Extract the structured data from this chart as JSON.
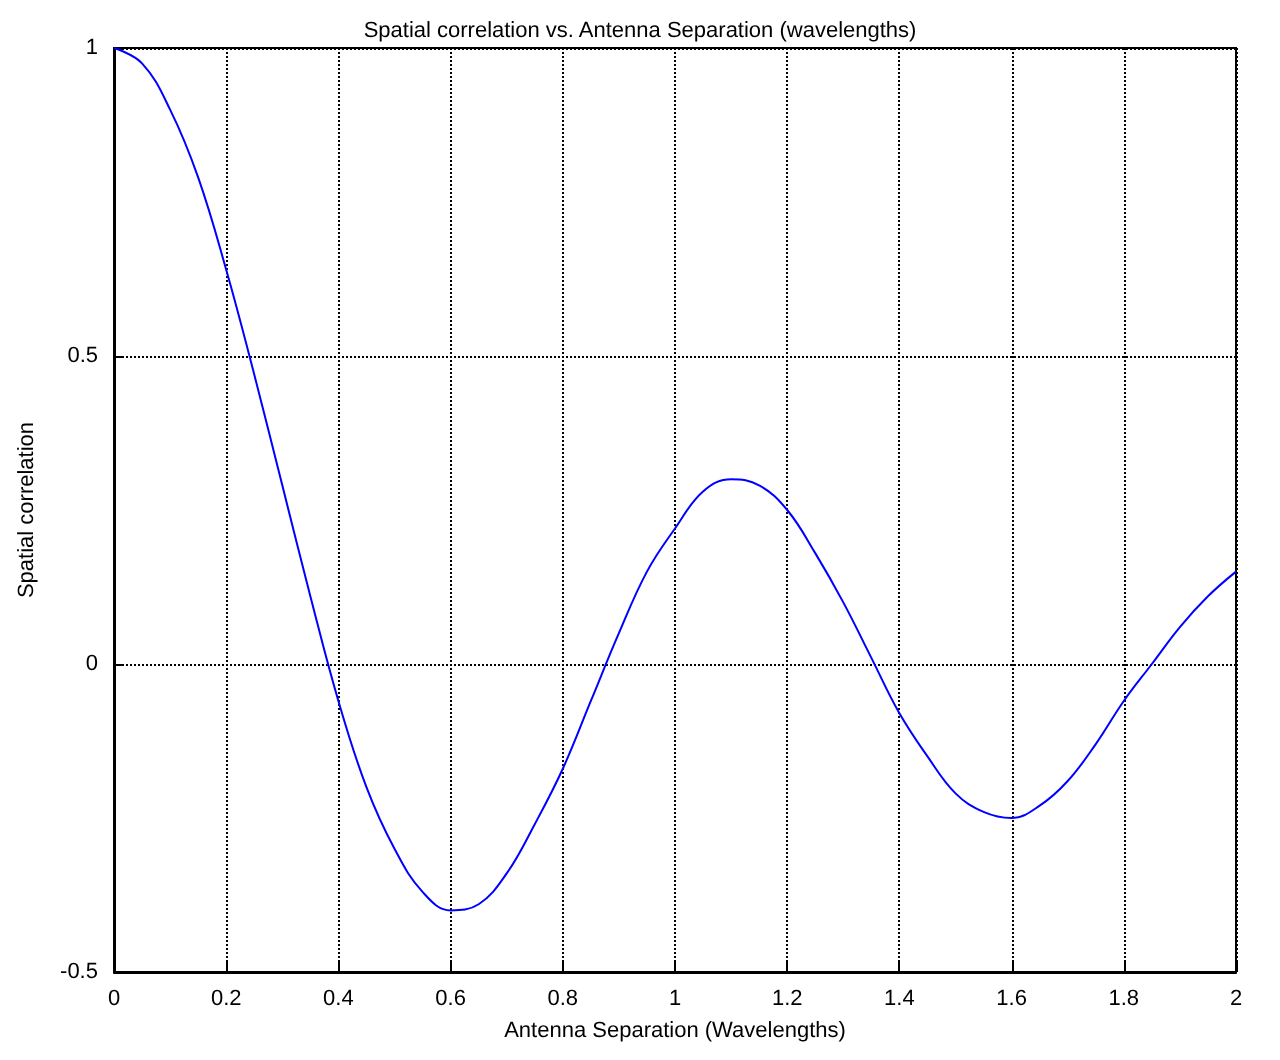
{
  "chart_data": {
    "type": "line",
    "title": "Spatial correlation vs. Antenna Separation (wavelengths)",
    "xlabel": "Antenna Separation (Wavelengths)",
    "ylabel": "Spatial correlation",
    "x": [
      0,
      0.05,
      0.1,
      0.15,
      0.2,
      0.25,
      0.3,
      0.35,
      0.4,
      0.45,
      0.5,
      0.55,
      0.6,
      0.65,
      0.7,
      0.75,
      0.8,
      0.85,
      0.9,
      0.95,
      1.0,
      1.05,
      1.1,
      1.15,
      1.2,
      1.25,
      1.3,
      1.35,
      1.4,
      1.45,
      1.5,
      1.55,
      1.6,
      1.65,
      1.7,
      1.75,
      1.8,
      1.85,
      1.9,
      1.95,
      2.0
    ],
    "series": [
      {
        "color": "#0000ff",
        "values": [
          1,
          0.975,
          0.9,
          0.79,
          0.64,
          0.47,
          0.29,
          0.11,
          -0.06,
          -0.2,
          -0.3,
          -0.37,
          -0.4,
          -0.39,
          -0.34,
          -0.26,
          -0.17,
          -0.06,
          0.05,
          0.15,
          0.22,
          0.28,
          0.3,
          0.29,
          0.25,
          0.18,
          0.1,
          0.01,
          -0.08,
          -0.15,
          -0.21,
          -0.24,
          -0.25,
          -0.23,
          -0.19,
          -0.13,
          -0.06,
          0.0,
          0.06,
          0.11,
          0.15
        ]
      }
    ],
    "xlim": [
      0,
      2
    ],
    "xticks": [
      0,
      0.2,
      0.4,
      0.6,
      0.8,
      1,
      1.2,
      1.4,
      1.6,
      1.8,
      2
    ],
    "ylim": [
      -0.5,
      1
    ],
    "yticks": [
      -0.5,
      0,
      0.5,
      1
    ],
    "grid": true,
    "line_style": "solid",
    "marker": "none"
  }
}
